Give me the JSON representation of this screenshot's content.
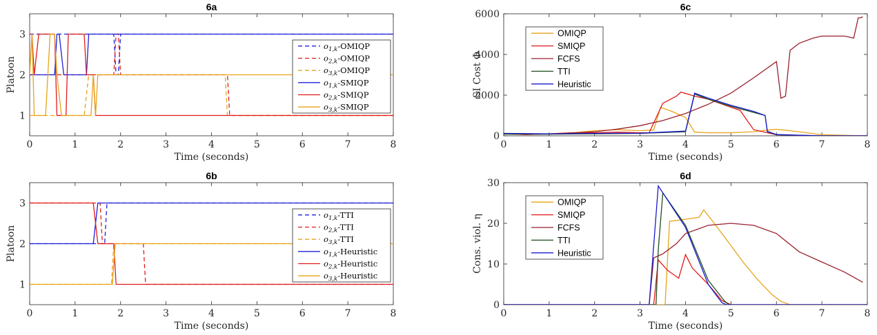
{
  "colors": {
    "blue": "#1f1fd9",
    "red": "#e01a1a",
    "orange": "#e8a317",
    "darkred": "#9a1f2d",
    "darkgreen": "#1d4d1d",
    "navy": "#1a1acc"
  },
  "chart_data": [
    {
      "id": "6a",
      "type": "line",
      "title": "6a",
      "xlabel": "Time (seconds)",
      "ylabel": "Platoon",
      "xlim": [
        0,
        8
      ],
      "ylim": [
        0.5,
        3.5
      ],
      "xticks": [
        "0",
        "1",
        "2",
        "3",
        "4",
        "5",
        "6",
        "7",
        "8"
      ],
      "yticks": [
        "1",
        "2",
        "3"
      ],
      "legend_position": "right",
      "series": [
        {
          "name": "o1,k-OMIQP",
          "sym": "o",
          "sub": "1,k",
          "suffix": "-OMIQP",
          "color": "blue",
          "dash": true,
          "x": [
            0,
            1.85,
            1.9,
            1.95,
            2.0,
            8
          ],
          "y": [
            3,
            3,
            2,
            2,
            3,
            3
          ]
        },
        {
          "name": "o2,k-OMIQP",
          "sym": "o",
          "sub": "2,k",
          "suffix": "-OMIQP",
          "color": "red",
          "dash": true,
          "x": [
            0,
            1.85,
            1.9,
            1.95,
            2.0,
            4.35,
            4.4,
            8
          ],
          "y": [
            2,
            2,
            3,
            3,
            2,
            2,
            1,
            1
          ]
        },
        {
          "name": "o3,k-OMIQP",
          "sym": "o",
          "sub": "3,k",
          "suffix": "-OMIQP",
          "color": "orange",
          "dash": true,
          "x": [
            0,
            1.2,
            1.3,
            4.3,
            4.35,
            8
          ],
          "y": [
            1,
            1,
            2,
            2,
            1,
            1
          ]
        },
        {
          "name": "o1,k-SMIQP",
          "sym": "o",
          "sub": "1,k",
          "suffix": "-SMIQP",
          "color": "blue",
          "dash": false,
          "x": [
            0,
            0.55,
            0.6,
            0.65,
            0.75,
            0.8,
            1.25,
            1.3,
            8
          ],
          "y": [
            2,
            2,
            3,
            3,
            2,
            2,
            2,
            3,
            3
          ]
        },
        {
          "name": "o2,k-SMIQP",
          "sym": "o",
          "sub": "2,k",
          "suffix": "-SMIQP",
          "color": "red",
          "dash": false,
          "x": [
            0,
            0.05,
            0.1,
            0.2,
            0.3,
            0.35,
            0.55,
            0.6,
            0.8,
            0.85,
            1.2,
            1.25,
            1.4,
            1.45,
            8
          ],
          "y": [
            3,
            3,
            2,
            3,
            3,
            3,
            3,
            1,
            1,
            3,
            3,
            2,
            2,
            1,
            1
          ]
        },
        {
          "name": "o3,k-SMIQP",
          "sym": "o",
          "sub": "3,k",
          "suffix": "-SMIQP",
          "color": "orange",
          "dash": false,
          "x": [
            0,
            0.05,
            0.1,
            0.35,
            0.45,
            0.55,
            0.6,
            0.7,
            1.35,
            1.4,
            1.45,
            1.5,
            8
          ],
          "y": [
            2,
            3,
            1,
            1,
            3,
            3,
            2,
            1,
            1,
            2,
            1,
            2,
            2
          ]
        }
      ]
    },
    {
      "id": "6b",
      "type": "line",
      "title": "6b",
      "xlabel": "Time (seconds)",
      "ylabel": "Platoon",
      "xlim": [
        0,
        8
      ],
      "ylim": [
        0.5,
        3.5
      ],
      "xticks": [
        "0",
        "1",
        "2",
        "3",
        "4",
        "5",
        "6",
        "7",
        "8"
      ],
      "yticks": [
        "1",
        "2",
        "3"
      ],
      "legend_position": "right",
      "series": [
        {
          "name": "o1,k-TTI",
          "sym": "o",
          "sub": "1,k",
          "suffix": "-TTI",
          "color": "blue",
          "dash": true,
          "x": [
            0,
            1.6,
            1.65,
            1.7,
            8
          ],
          "y": [
            2,
            2,
            2,
            3,
            3
          ]
        },
        {
          "name": "o2,k-TTI",
          "sym": "o",
          "sub": "2,k",
          "suffix": "-TTI",
          "color": "red",
          "dash": true,
          "x": [
            0,
            1.55,
            1.6,
            1.7,
            2.5,
            2.55,
            8
          ],
          "y": [
            3,
            3,
            2,
            2,
            2,
            1,
            1
          ]
        },
        {
          "name": "o3,k-TTI",
          "sym": "o",
          "sub": "3,k",
          "suffix": "-TTI",
          "color": "orange",
          "dash": true,
          "x": [
            0,
            1.8,
            1.85,
            8
          ],
          "y": [
            1,
            1,
            2,
            2
          ]
        },
        {
          "name": "o1,k-Heuristic",
          "sym": "o",
          "sub": "1,k",
          "suffix": "-Heuristic",
          "color": "blue",
          "dash": false,
          "x": [
            0,
            1.4,
            1.5,
            8
          ],
          "y": [
            2,
            2,
            3,
            3
          ]
        },
        {
          "name": "o2,k-Heuristic",
          "sym": "o",
          "sub": "2,k",
          "suffix": "-Heuristic",
          "color": "red",
          "dash": false,
          "x": [
            0,
            1.4,
            1.5,
            1.85,
            1.9,
            8
          ],
          "y": [
            3,
            3,
            2,
            2,
            1,
            1
          ]
        },
        {
          "name": "o3,k-Heuristic",
          "sym": "o",
          "sub": "3,k",
          "suffix": "-Heuristic",
          "color": "orange",
          "dash": false,
          "x": [
            0,
            1.82,
            1.88,
            8
          ],
          "y": [
            1,
            1,
            2,
            2
          ]
        }
      ]
    },
    {
      "id": "6c",
      "type": "line",
      "title": "6c",
      "xlabel": "Time (seconds)",
      "ylabel": "SI Cost Φ",
      "xlim": [
        0,
        8
      ],
      "ylim": [
        0,
        6000
      ],
      "xticks": [
        "0",
        "1",
        "2",
        "3",
        "4",
        "5",
        "6",
        "7",
        "8"
      ],
      "yticks": [
        "0",
        "2000",
        "4000",
        "6000"
      ],
      "ytick_values": [
        0,
        2000,
        4000,
        6000
      ],
      "legend_position": "upper-left",
      "series": [
        {
          "name": "OMIQP",
          "color": "orange",
          "x": [
            0,
            0.5,
            1,
            1.5,
            2,
            2.5,
            3,
            3.3,
            3.45,
            3.7,
            4.0,
            4.2,
            4.5,
            5.0,
            5.5,
            5.8,
            6.0,
            6.5,
            7.0,
            8.0
          ],
          "y": [
            100,
            60,
            100,
            150,
            250,
            300,
            250,
            280,
            1400,
            1200,
            900,
            180,
            150,
            150,
            200,
            280,
            320,
            200,
            50,
            0
          ]
        },
        {
          "name": "SMIQP",
          "color": "red",
          "x": [
            0,
            0.5,
            1,
            1.5,
            2,
            2.5,
            3,
            3.2,
            3.5,
            3.8,
            3.9,
            4.2,
            4.5,
            5.0,
            5.2,
            5.5,
            6.0,
            7.0,
            8.0
          ],
          "y": [
            100,
            60,
            100,
            150,
            150,
            180,
            150,
            150,
            1600,
            1950,
            2150,
            1950,
            1800,
            1400,
            1250,
            300,
            50,
            0,
            0
          ]
        },
        {
          "name": "FCFS",
          "color": "darkred",
          "x": [
            0,
            1,
            2,
            2.5,
            3,
            3.5,
            4,
            4.5,
            5,
            5.5,
            6.0,
            6.1,
            6.2,
            6.3,
            6.5,
            6.8,
            7.0,
            7.5,
            7.7,
            7.8,
            7.85,
            7.9
          ],
          "y": [
            100,
            80,
            200,
            330,
            500,
            750,
            1100,
            1550,
            2100,
            2850,
            3650,
            1850,
            1950,
            4200,
            4550,
            4800,
            4900,
            4900,
            4800,
            5800,
            5800,
            5850
          ]
        },
        {
          "name": "TTI",
          "color": "darkgreen",
          "x": [
            0,
            1,
            2,
            3,
            4.0,
            4.2,
            4.5,
            5,
            5.5,
            5.75,
            5.8,
            6.0,
            7,
            8
          ],
          "y": [
            80,
            80,
            100,
            120,
            200,
            2050,
            1800,
            1450,
            1150,
            1000,
            200,
            50,
            0,
            0
          ]
        },
        {
          "name": "Heuristic",
          "color": "navy",
          "x": [
            0,
            1,
            2,
            3,
            4.0,
            4.2,
            4.5,
            5,
            5.5,
            5.75,
            5.8,
            6.0,
            7,
            8
          ],
          "y": [
            120,
            100,
            120,
            130,
            230,
            2100,
            1850,
            1500,
            1200,
            1000,
            220,
            60,
            0,
            0
          ]
        }
      ]
    },
    {
      "id": "6d",
      "type": "line",
      "title": "6d",
      "xlabel": "Time (seconds)",
      "ylabel": "Cons. viol. η",
      "xlim": [
        0,
        8
      ],
      "ylim": [
        0,
        30
      ],
      "xticks": [
        "0",
        "1",
        "2",
        "3",
        "4",
        "5",
        "6",
        "7",
        "8"
      ],
      "yticks": [
        "0",
        "10",
        "20",
        "30"
      ],
      "ytick_values": [
        0,
        10,
        20,
        30
      ],
      "legend_position": "upper-left",
      "series": [
        {
          "name": "OMIQP",
          "color": "orange",
          "x": [
            0,
            3.55,
            3.65,
            4.0,
            4.3,
            4.4,
            4.6,
            5.0,
            5.3,
            5.6,
            5.9,
            6.1,
            6.3,
            8
          ],
          "y": [
            0,
            0,
            20.5,
            21,
            21.5,
            23.3,
            20.5,
            14.5,
            10,
            6,
            2.5,
            0.8,
            0,
            0
          ]
        },
        {
          "name": "SMIQP",
          "color": "red",
          "x": [
            0,
            3.3,
            3.4,
            3.6,
            3.85,
            4.0,
            4.15,
            4.5,
            4.8,
            5.0,
            8
          ],
          "y": [
            0,
            0,
            11,
            8.5,
            6.5,
            12.3,
            9,
            5,
            1,
            0,
            0
          ]
        },
        {
          "name": "FCFS",
          "color": "darkred",
          "x": [
            0,
            3.2,
            3.3,
            3.5,
            3.8,
            4.0,
            4.5,
            5.0,
            5.5,
            6.0,
            6.5,
            7.0,
            7.5,
            7.9
          ],
          "y": [
            0,
            0,
            11.5,
            12.5,
            15,
            17.5,
            19.5,
            20,
            19.5,
            17.5,
            13,
            10.5,
            8,
            5.5
          ]
        },
        {
          "name": "TTI",
          "color": "darkgreen",
          "x": [
            0,
            3.35,
            3.4,
            3.5,
            4.0,
            4.5,
            4.85,
            4.95,
            8
          ],
          "y": [
            0,
            0,
            13.5,
            27.5,
            19.5,
            6,
            1,
            0,
            0
          ]
        },
        {
          "name": "Heuristic",
          "color": "navy",
          "x": [
            0,
            3.2,
            3.4,
            4.0,
            4.5,
            4.8,
            4.9,
            8
          ],
          "y": [
            0,
            0,
            29.2,
            19,
            5,
            0.5,
            0,
            0
          ]
        }
      ]
    }
  ]
}
